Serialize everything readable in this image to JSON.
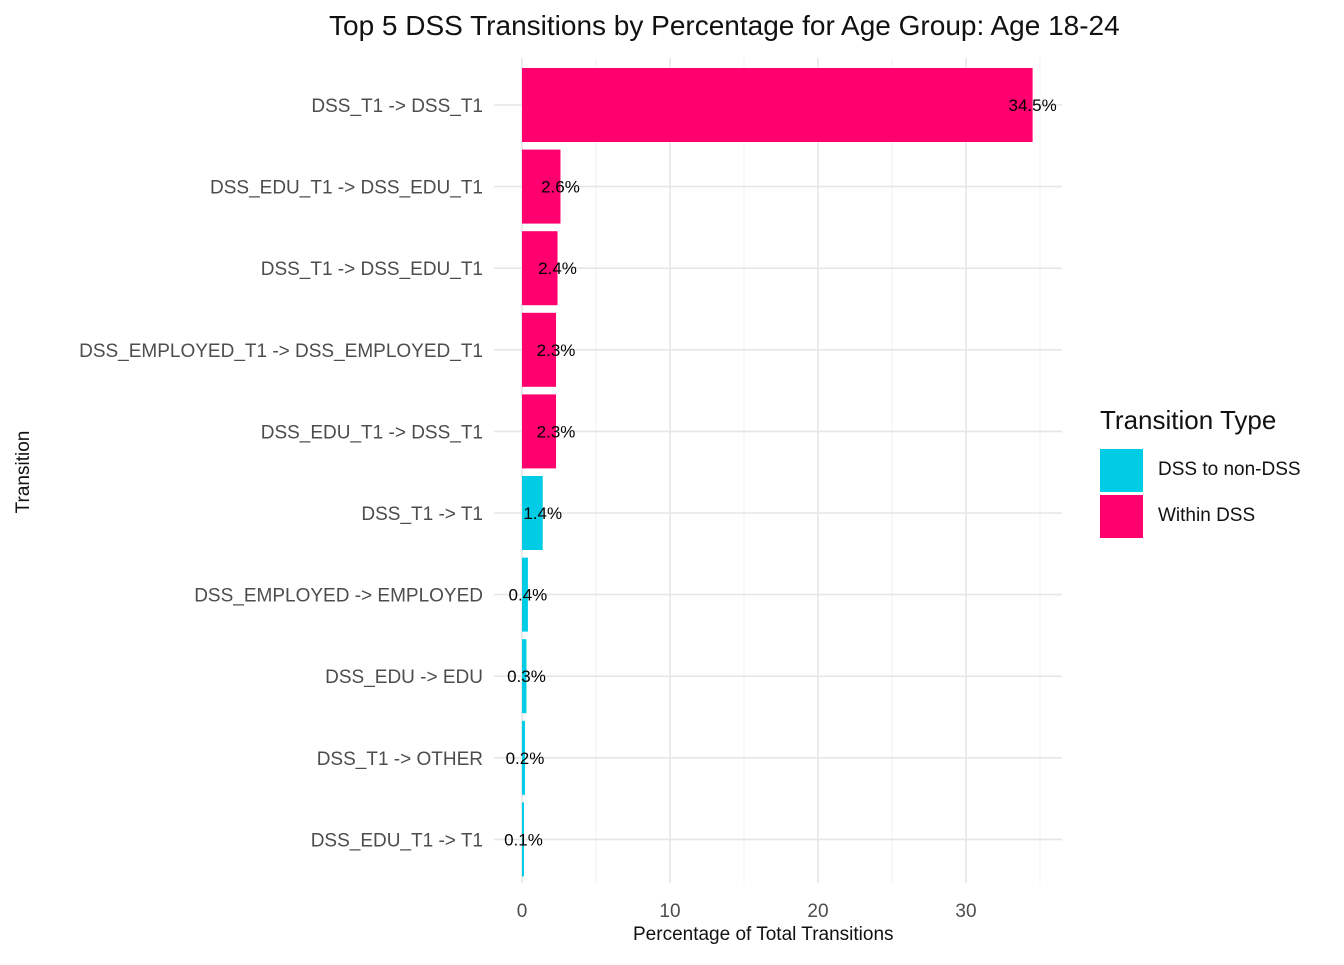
{
  "chart_data": {
    "type": "bar",
    "orientation": "horizontal",
    "title": "Top 5 DSS Transitions by Percentage for Age Group: Age 18-24",
    "xlabel": "Percentage of Total Transitions",
    "ylabel": "Transition",
    "xlim": [
      0,
      36
    ],
    "xticks": [
      0,
      10,
      20,
      30
    ],
    "grid": true,
    "legend_position": "right",
    "legend_title": "Transition Type",
    "legend": [
      {
        "name": "DSS to non-DSS",
        "color": "#00CCE6"
      },
      {
        "name": "Within DSS",
        "color": "#FF006E"
      }
    ],
    "categories": [
      "DSS_T1 -> DSS_T1",
      "DSS_EDU_T1 -> DSS_EDU_T1",
      "DSS_T1 -> DSS_EDU_T1",
      "DSS_EMPLOYED_T1 -> DSS_EMPLOYED_T1",
      "DSS_EDU_T1 -> DSS_T1",
      "DSS_T1 -> T1",
      "DSS_EMPLOYED -> EMPLOYED",
      "DSS_EDU -> EDU",
      "DSS_T1 -> OTHER",
      "DSS_EDU_T1 -> T1"
    ],
    "values": [
      34.5,
      2.6,
      2.4,
      2.3,
      2.3,
      1.4,
      0.4,
      0.3,
      0.2,
      0.1
    ],
    "labels": [
      "34.5%",
      "2.6%",
      "2.4%",
      "2.3%",
      "2.3%",
      "1.4%",
      "0.4%",
      "0.3%",
      "0.2%",
      "0.1%"
    ],
    "types": [
      "Within DSS",
      "Within DSS",
      "Within DSS",
      "Within DSS",
      "Within DSS",
      "DSS to non-DSS",
      "DSS to non-DSS",
      "DSS to non-DSS",
      "DSS to non-DSS",
      "DSS to non-DSS"
    ]
  }
}
